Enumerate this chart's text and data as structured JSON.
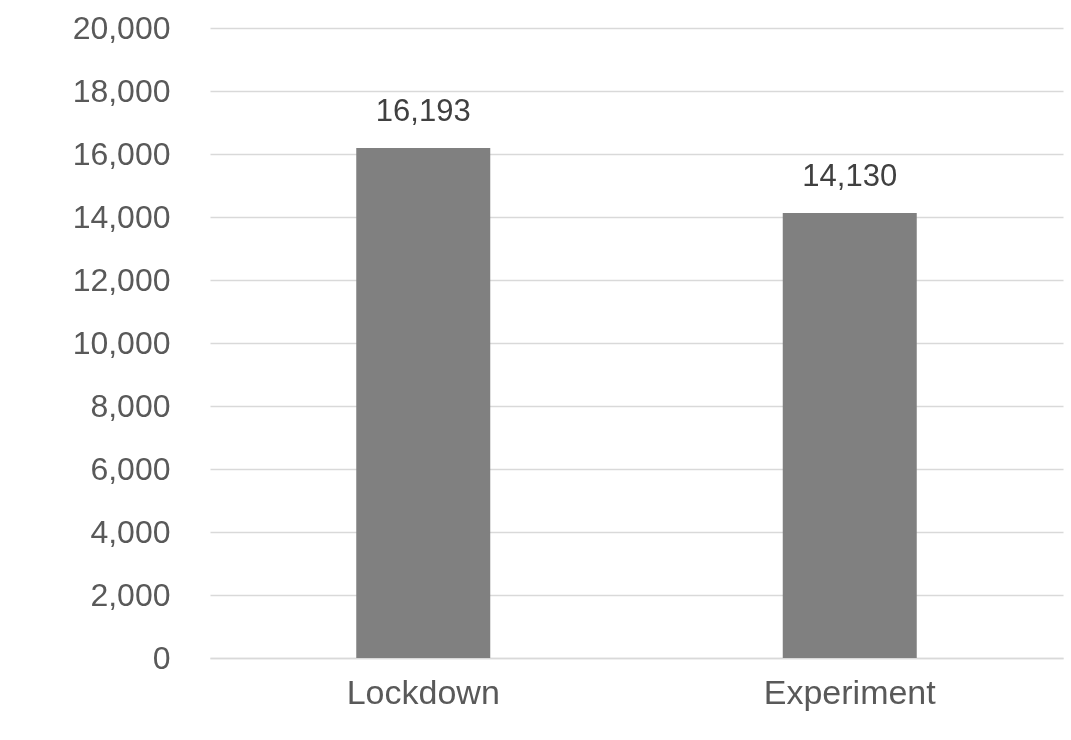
{
  "chart_data": {
    "type": "bar",
    "categories": [
      "Lockdown",
      "Experiment"
    ],
    "values": [
      16193,
      14130
    ],
    "value_labels": [
      "16,193",
      "14,130"
    ],
    "color": "#808080",
    "ylim": [
      0,
      20000
    ],
    "yticks": [
      0,
      {
        "value": 2000,
        "label": "2,000"
      },
      {
        "value": 4000,
        "label": "4,000"
      },
      {
        "value": 6000,
        "label": "6,000"
      },
      {
        "value": 8000,
        "label": "8,000"
      },
      {
        "value": 10000,
        "label": "10,000"
      },
      {
        "value": 12000,
        "label": "12,000"
      },
      {
        "value": 14000,
        "label": "14,000"
      },
      {
        "value": 16000,
        "label": "16,000"
      },
      {
        "value": 18000,
        "label": "18,000"
      },
      {
        "value": 20000,
        "label": "20,000"
      }
    ],
    "grid": "y"
  }
}
